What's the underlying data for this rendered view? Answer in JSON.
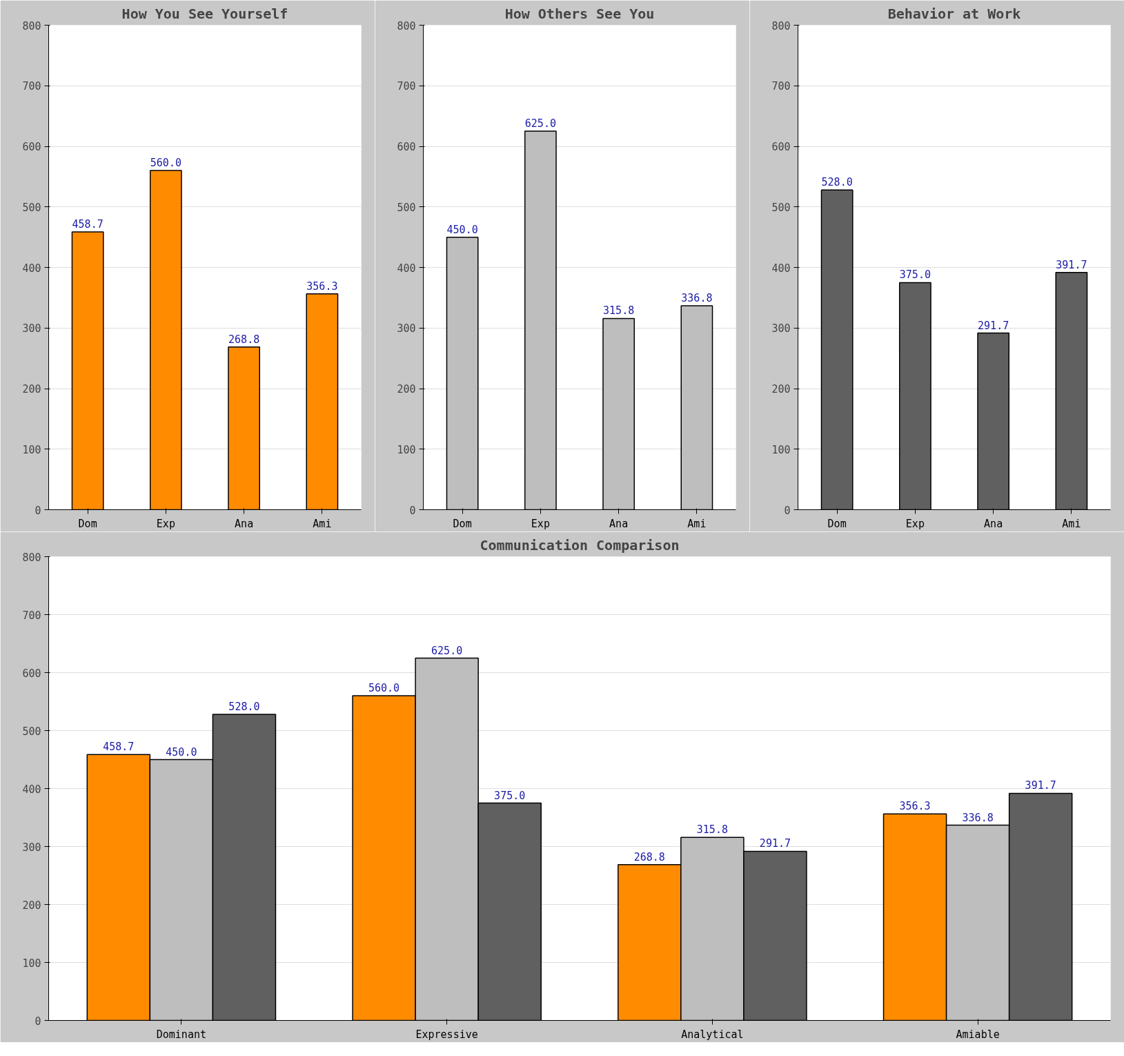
{
  "chart_data": [
    {
      "type": "bar",
      "title": "How You See Yourself",
      "categories": [
        "Dom",
        "Exp",
        "Ana",
        "Ami"
      ],
      "values": [
        458.7,
        560.0,
        268.8,
        356.3
      ],
      "value_labels": [
        "458.7",
        "560.0",
        "268.8",
        "356.3"
      ],
      "color": "#ff8c00",
      "ylim": [
        0,
        800
      ],
      "yticks": [
        0,
        100,
        200,
        300,
        400,
        500,
        600,
        700,
        800
      ],
      "grid": "y"
    },
    {
      "type": "bar",
      "title": "How Others See You",
      "categories": [
        "Dom",
        "Exp",
        "Ana",
        "Ami"
      ],
      "values": [
        450.0,
        625.0,
        315.8,
        336.8
      ],
      "value_labels": [
        "450.0",
        "625.0",
        "315.8",
        "336.8"
      ],
      "color": "#bebebe",
      "ylim": [
        0,
        800
      ],
      "yticks": [
        0,
        100,
        200,
        300,
        400,
        500,
        600,
        700,
        800
      ],
      "grid": "y"
    },
    {
      "type": "bar",
      "title": "Behavior at Work",
      "categories": [
        "Dom",
        "Exp",
        "Ana",
        "Ami"
      ],
      "values": [
        528.0,
        375.0,
        291.7,
        391.7
      ],
      "value_labels": [
        "528.0",
        "375.0",
        "291.7",
        "391.7"
      ],
      "color": "#606060",
      "ylim": [
        0,
        800
      ],
      "yticks": [
        0,
        100,
        200,
        300,
        400,
        500,
        600,
        700,
        800
      ],
      "grid": "y"
    },
    {
      "type": "bar",
      "title": "Communication Comparison",
      "categories": [
        "Dominant",
        "Expressive",
        "Analytical",
        "Amiable"
      ],
      "series": [
        {
          "color": "#ff8c00",
          "values": [
            458.7,
            560.0,
            268.8,
            356.3
          ],
          "value_labels": [
            "458.7",
            "560.0",
            "268.8",
            "356.3"
          ]
        },
        {
          "color": "#bebebe",
          "values": [
            450.0,
            625.0,
            315.8,
            336.8
          ],
          "value_labels": [
            "450.0",
            "625.0",
            "315.8",
            "336.8"
          ]
        },
        {
          "color": "#606060",
          "values": [
            528.0,
            375.0,
            291.7,
            391.7
          ],
          "value_labels": [
            "528.0",
            "375.0",
            "291.7",
            "391.7"
          ]
        }
      ],
      "ylim": [
        0,
        800
      ],
      "yticks": [
        0,
        100,
        200,
        300,
        400,
        500,
        600,
        700,
        800
      ],
      "grid": "y"
    }
  ]
}
